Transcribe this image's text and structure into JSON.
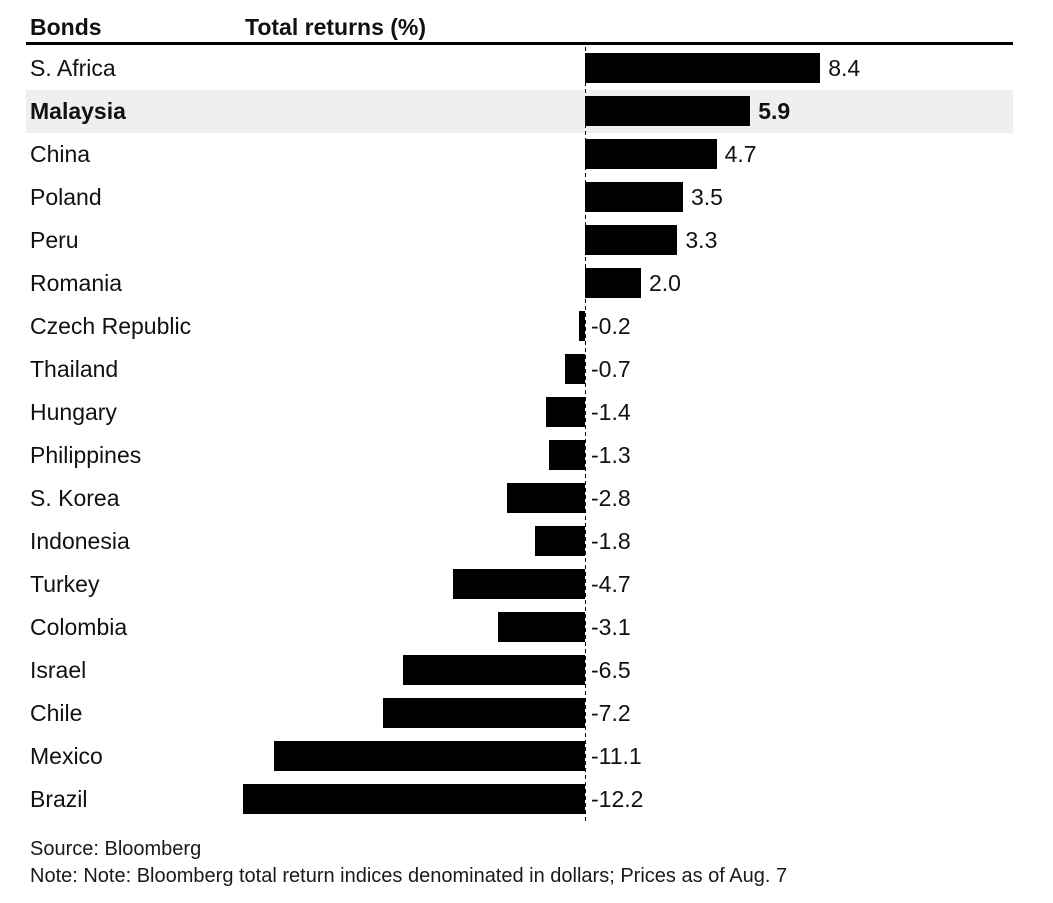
{
  "header": {
    "col1": "Bonds",
    "col2": "Total returns (%)"
  },
  "chart_data": {
    "type": "bar",
    "orientation": "horizontal",
    "title": "Total returns (%)",
    "categories": [
      "S. Africa",
      "Malaysia",
      "China",
      "Poland",
      "Peru",
      "Romania",
      "Czech Republic",
      "Thailand",
      "Hungary",
      "Philippines",
      "S. Korea",
      "Indonesia",
      "Turkey",
      "Colombia",
      "Israel",
      "Chile",
      "Mexico",
      "Brazil"
    ],
    "values": [
      8.4,
      5.9,
      4.7,
      3.5,
      3.3,
      2.0,
      -0.2,
      -0.7,
      -1.4,
      -1.3,
      -2.8,
      -1.8,
      -4.7,
      -3.1,
      -6.5,
      -7.2,
      -11.1,
      -12.2
    ],
    "highlighted": "Malaysia",
    "xlim": [
      -12.2,
      8.4
    ],
    "zero_axis": "dashed",
    "grid": false,
    "legend": "none",
    "bar_color": "#000000",
    "highlight_bg": "#efefef",
    "text_color": "#111111"
  },
  "footer": {
    "source": "Source: Bloomberg",
    "note": "Note: Note: Bloomberg total return indices denominated in dollars; Prices as of Aug. 7"
  }
}
